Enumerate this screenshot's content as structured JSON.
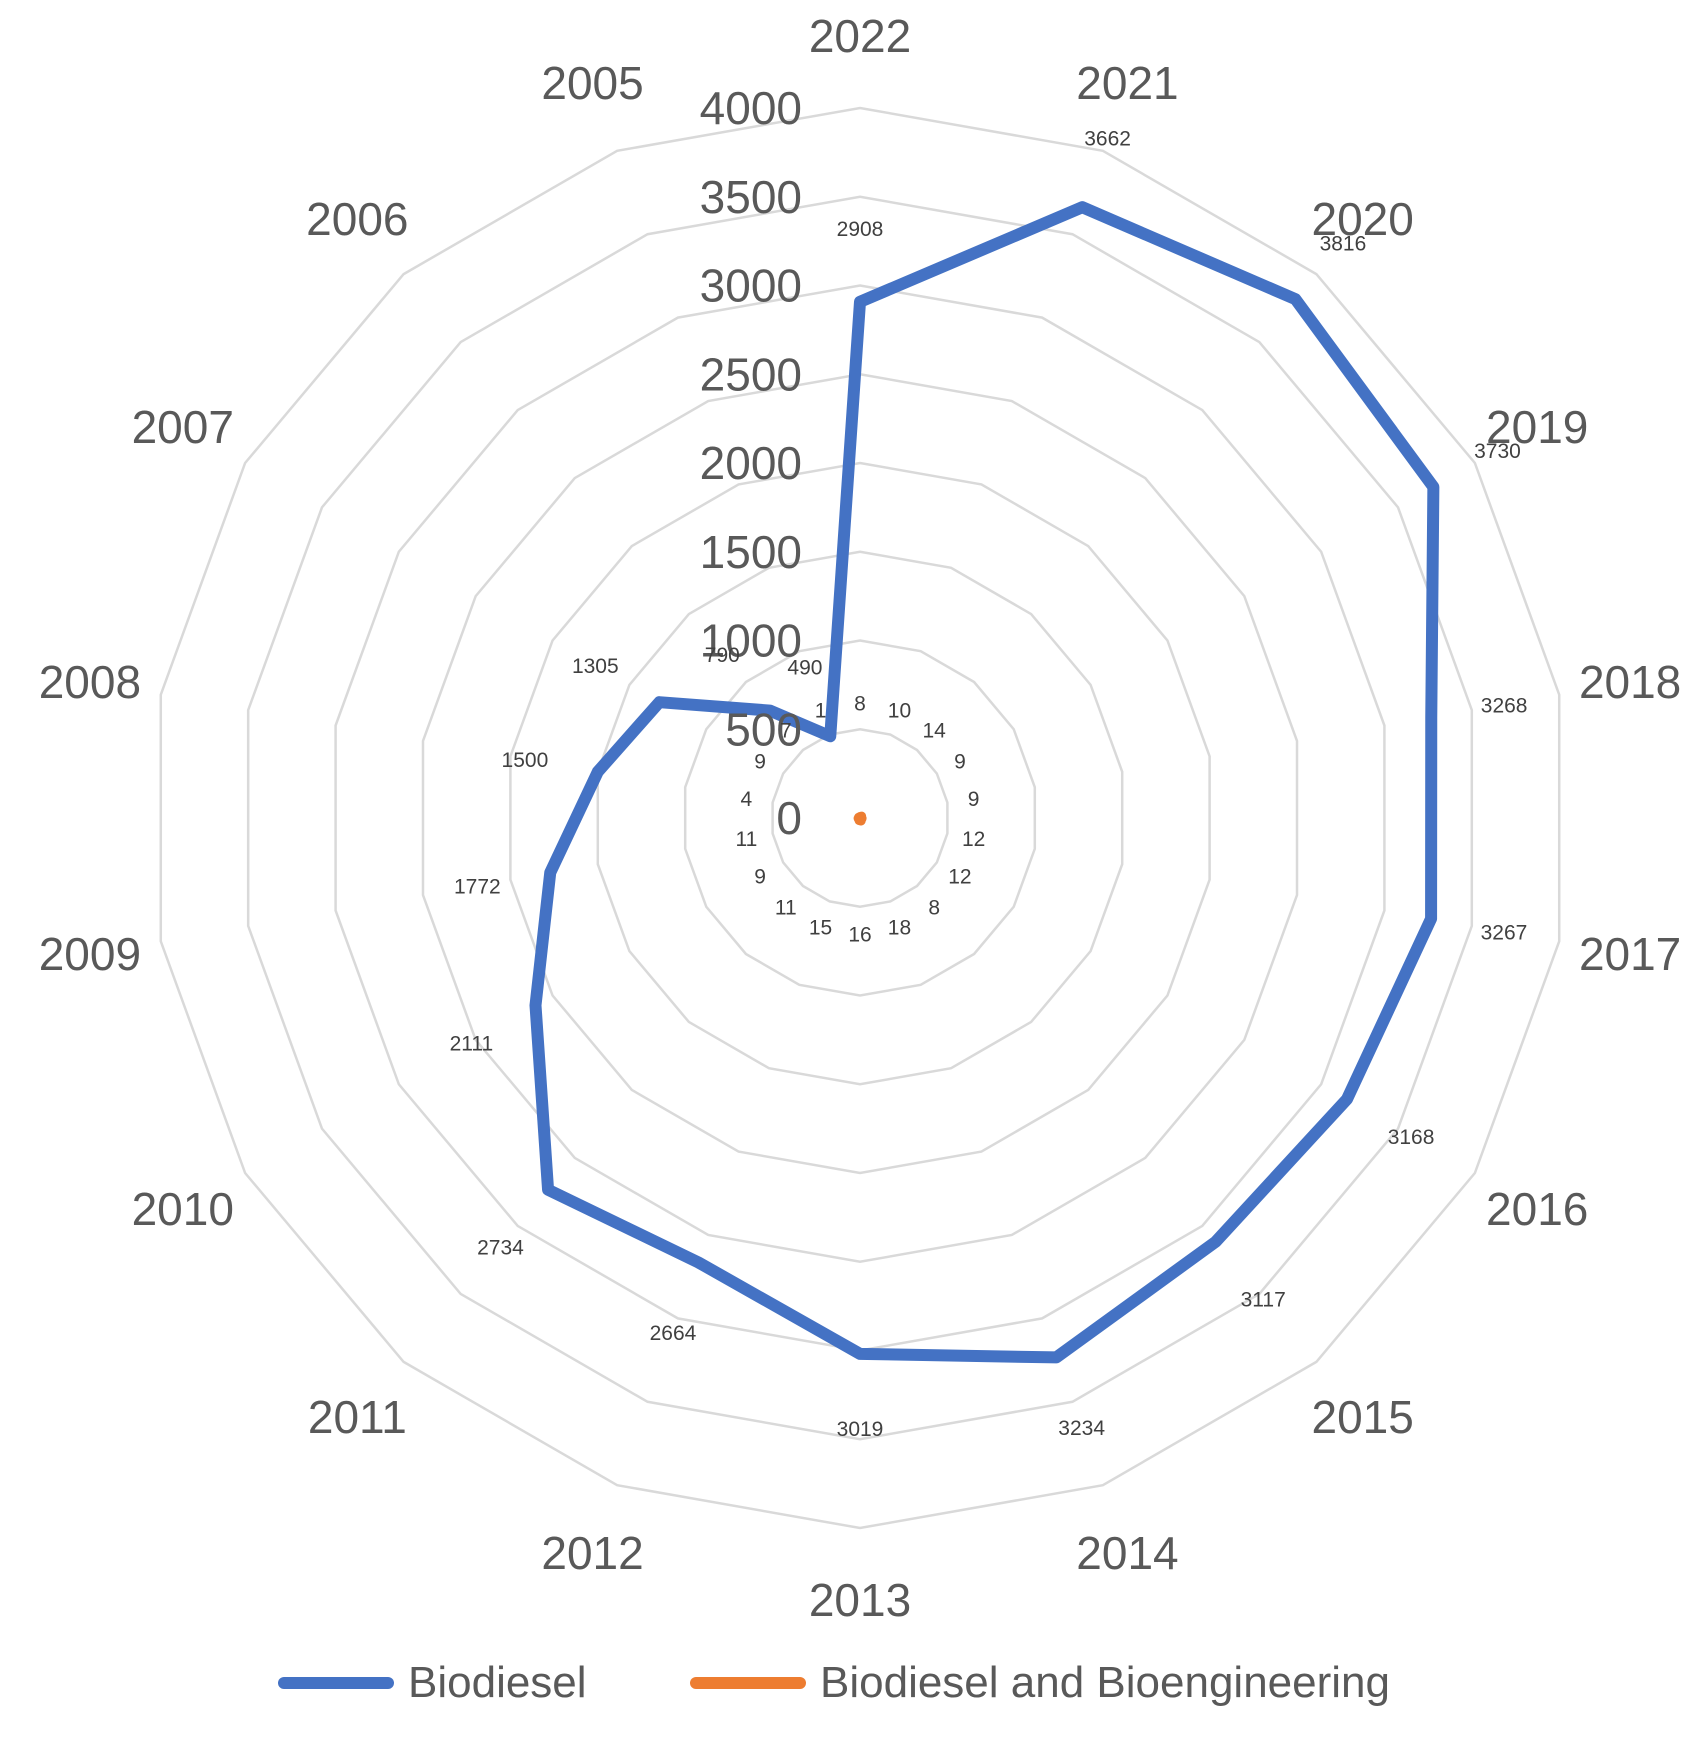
{
  "chart_data": {
    "type": "radar",
    "categories": [
      "2022",
      "2021",
      "2020",
      "2019",
      "2018",
      "2017",
      "2016",
      "2015",
      "2014",
      "2013",
      "2012",
      "2011",
      "2010",
      "2009",
      "2008",
      "2007",
      "2006",
      "2005"
    ],
    "series": [
      {
        "name": "Biodiesel",
        "color": "#4472C4",
        "values": [
          2908,
          3662,
          3816,
          3730,
          3268,
          3267,
          3168,
          3117,
          3234,
          3019,
          2664,
          2734,
          2111,
          1772,
          1500,
          1305,
          790,
          490
        ]
      },
      {
        "name": "Biodiesel and Bioengineering",
        "color": "#ED7D31",
        "values": [
          8,
          10,
          14,
          9,
          9,
          12,
          12,
          8,
          18,
          16,
          15,
          11,
          9,
          11,
          4,
          9,
          7,
          1
        ]
      }
    ],
    "radial_axis": {
      "min": 0,
      "max": 4000,
      "ticks": [
        "0",
        "500",
        "1000",
        "1500",
        "2000",
        "2500",
        "3000",
        "3500",
        "4000"
      ]
    },
    "data_labels": {
      "Biodiesel": [
        "2908",
        "3662",
        "3816",
        "3730",
        "3268",
        "3267",
        "3168",
        "3117",
        "3234",
        "3019",
        "2664",
        "2734",
        "2111",
        "1772",
        "1500",
        "1305",
        "790",
        "490"
      ],
      "Biodiesel and Bioengineering": [
        "8",
        "10",
        "14",
        "9",
        "9",
        "12",
        "12",
        "8",
        "18",
        "16",
        "15",
        "11",
        "9",
        "11",
        "4",
        "9",
        "7",
        "1"
      ]
    },
    "grid": true,
    "legend_position": "bottom"
  }
}
